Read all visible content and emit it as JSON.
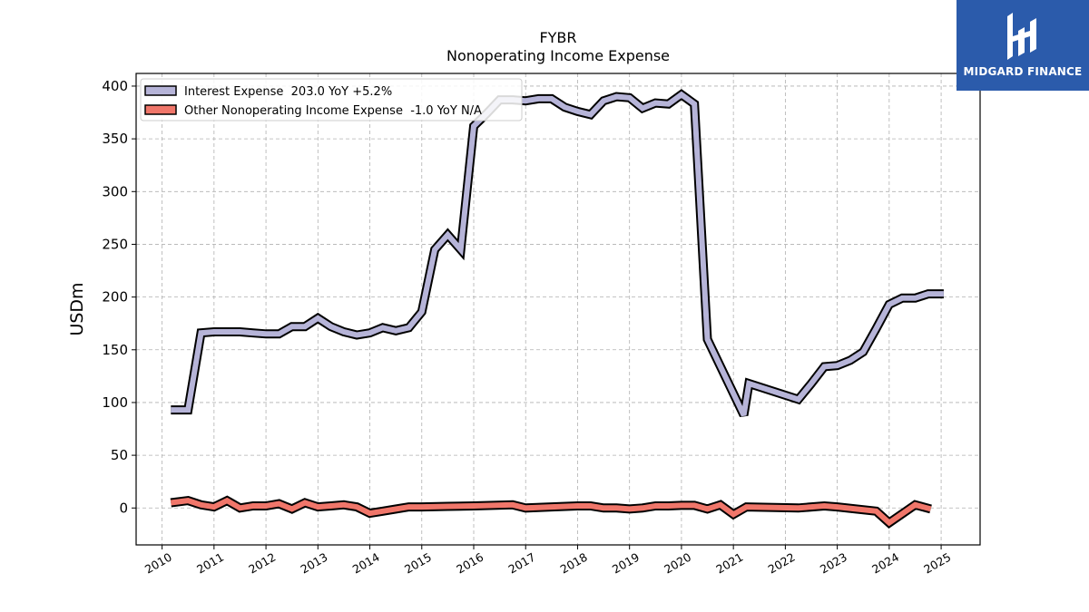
{
  "chart_data": {
    "type": "line",
    "title": "FYBR",
    "subtitle": "Nonoperating Income Expense",
    "ylabel": "USDm",
    "xlabel": "",
    "xlim": [
      2009.5,
      2025.75
    ],
    "ylim": [
      -35,
      412
    ],
    "x_ticks": [
      "2010",
      "2011",
      "2012",
      "2013",
      "2014",
      "2015",
      "2016",
      "2017",
      "2018",
      "2019",
      "2020",
      "2021",
      "2022",
      "2023",
      "2024",
      "2025"
    ],
    "y_ticks": [
      "0",
      "50",
      "100",
      "150",
      "200",
      "250",
      "300",
      "350",
      "400"
    ],
    "grid": true,
    "legend_position": "top-left",
    "series": [
      {
        "name": "Interest Expense",
        "legend_label": "Interest Expense  203.0 YoY +5.2%",
        "color": "#b6b4d8",
        "points": [
          [
            2010.17,
            93
          ],
          [
            2010.5,
            93
          ],
          [
            2010.75,
            166
          ],
          [
            2011.0,
            167
          ],
          [
            2011.25,
            167
          ],
          [
            2011.5,
            167
          ],
          [
            2011.75,
            166
          ],
          [
            2012.0,
            165
          ],
          [
            2012.25,
            165
          ],
          [
            2012.5,
            172
          ],
          [
            2012.75,
            172
          ],
          [
            2013.0,
            180
          ],
          [
            2013.25,
            172
          ],
          [
            2013.5,
            167
          ],
          [
            2013.75,
            164
          ],
          [
            2014.0,
            166
          ],
          [
            2014.25,
            171
          ],
          [
            2014.5,
            168
          ],
          [
            2014.75,
            171
          ],
          [
            2015.0,
            186
          ],
          [
            2015.25,
            245
          ],
          [
            2015.5,
            259
          ],
          [
            2015.75,
            245
          ],
          [
            2016.0,
            362
          ],
          [
            2016.25,
            374
          ],
          [
            2016.5,
            387
          ],
          [
            2016.75,
            387
          ],
          [
            2017.0,
            386
          ],
          [
            2017.25,
            388
          ],
          [
            2017.5,
            388
          ],
          [
            2017.75,
            380
          ],
          [
            2018.0,
            376
          ],
          [
            2018.25,
            373
          ],
          [
            2018.5,
            386
          ],
          [
            2018.75,
            390
          ],
          [
            2019.0,
            389
          ],
          [
            2019.25,
            379
          ],
          [
            2019.5,
            384
          ],
          [
            2019.75,
            383
          ],
          [
            2020.0,
            392
          ],
          [
            2020.25,
            383
          ],
          [
            2020.5,
            160
          ],
          [
            2021.2,
            88
          ],
          [
            2021.3,
            118
          ],
          [
            2022.25,
            103
          ],
          [
            2022.5,
            118
          ],
          [
            2022.75,
            134
          ],
          [
            2023.0,
            135
          ],
          [
            2023.25,
            140
          ],
          [
            2023.5,
            148
          ],
          [
            2023.75,
            170
          ],
          [
            2024.0,
            193
          ],
          [
            2024.25,
            199
          ],
          [
            2024.5,
            199
          ],
          [
            2024.75,
            203
          ],
          [
            2025.05,
            203
          ]
        ]
      },
      {
        "name": "Other Nonoperating Income Expense",
        "legend_label": "Other Nonoperating Income Expense  -1.0 YoY N/A",
        "color": "#f0766a",
        "points": [
          [
            2010.17,
            5
          ],
          [
            2010.5,
            7
          ],
          [
            2010.75,
            3
          ],
          [
            2011.0,
            1
          ],
          [
            2011.25,
            7
          ],
          [
            2011.5,
            0
          ],
          [
            2011.75,
            2
          ],
          [
            2012.0,
            2
          ],
          [
            2012.25,
            4
          ],
          [
            2012.5,
            -1
          ],
          [
            2012.75,
            5
          ],
          [
            2013.0,
            1
          ],
          [
            2013.25,
            2
          ],
          [
            2013.5,
            3
          ],
          [
            2013.75,
            1
          ],
          [
            2014.0,
            -5
          ],
          [
            2014.25,
            -3
          ],
          [
            2014.5,
            -1
          ],
          [
            2014.75,
            1
          ],
          [
            2015.0,
            1
          ],
          [
            2015.5,
            1.5
          ],
          [
            2016.0,
            2
          ],
          [
            2016.75,
            3
          ],
          [
            2017.0,
            0
          ],
          [
            2017.5,
            1
          ],
          [
            2018.0,
            2
          ],
          [
            2018.25,
            2
          ],
          [
            2018.5,
            0
          ],
          [
            2018.75,
            0
          ],
          [
            2019.0,
            -1
          ],
          [
            2019.25,
            0
          ],
          [
            2019.5,
            2
          ],
          [
            2019.75,
            2
          ],
          [
            2020.0,
            2.5
          ],
          [
            2020.25,
            2.5
          ],
          [
            2020.5,
            -1
          ],
          [
            2020.75,
            3
          ],
          [
            2021.0,
            -6
          ],
          [
            2021.25,
            1
          ],
          [
            2022.25,
            0
          ],
          [
            2022.75,
            2
          ],
          [
            2023.0,
            1
          ],
          [
            2023.75,
            -3
          ],
          [
            2024.0,
            -14
          ],
          [
            2024.5,
            3
          ],
          [
            2024.8,
            -1
          ]
        ]
      }
    ]
  },
  "logo": {
    "name": "MIDGARD FINANCE",
    "background": "#2b5bab"
  }
}
